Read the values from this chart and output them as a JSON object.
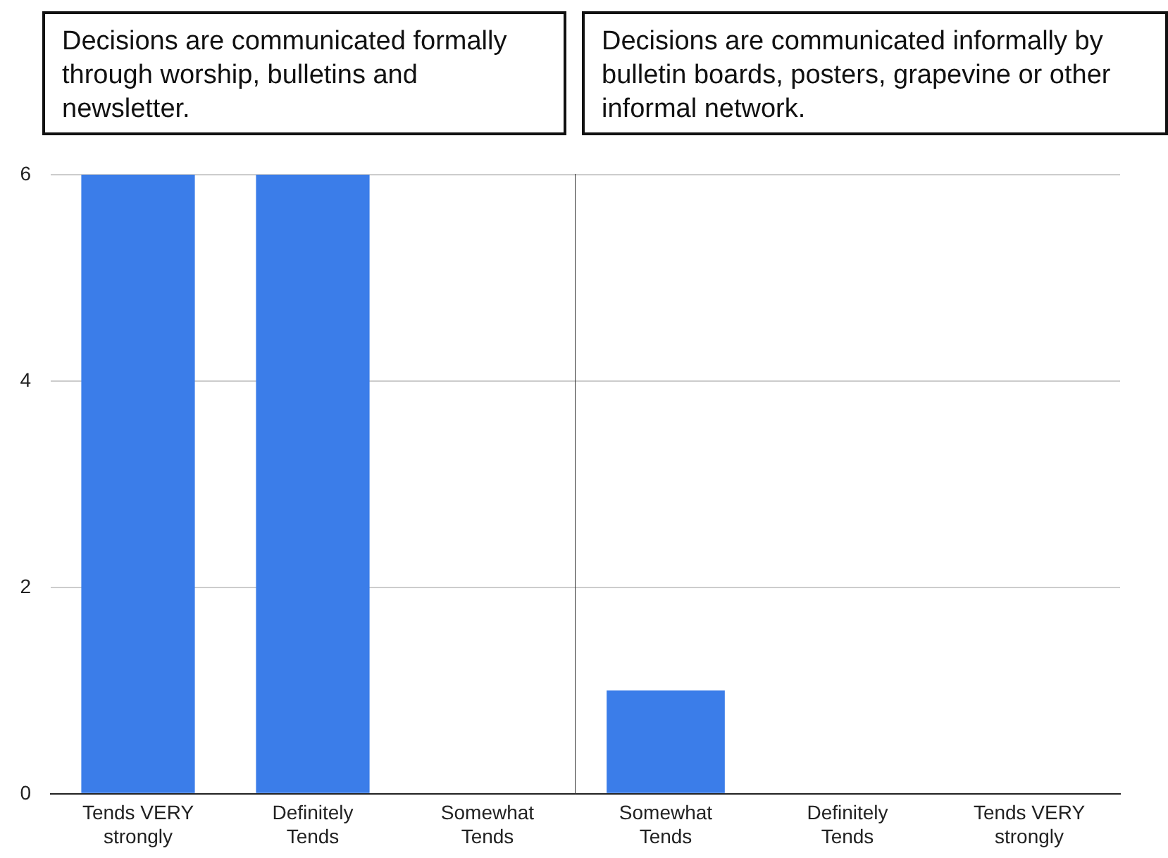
{
  "chart_data": [
    {
      "type": "bar",
      "title": "Decisions are communicated formally through worship, bulletins and newsletter.",
      "categories": [
        "Tends VERY strongly",
        "Definitely Tends",
        "Somewhat Tends"
      ],
      "values": [
        6,
        6,
        0
      ],
      "color": "#3b7de9",
      "ylim": [
        0,
        6
      ],
      "yticks": [
        0,
        2,
        4,
        6
      ],
      "grid": "y"
    },
    {
      "type": "bar",
      "title": "Decisions are communicated informally by bulletin boards, posters, grapevine or other informal network.",
      "categories": [
        "Somewhat Tends",
        "Definitely Tends",
        "Tends VERY strongly"
      ],
      "values": [
        1,
        0,
        0
      ],
      "color": "#3b7de9",
      "ylim": [
        0,
        6
      ],
      "yticks": [
        0,
        2,
        4,
        6
      ],
      "grid": "y",
      "tick_labels": "x"
    }
  ]
}
